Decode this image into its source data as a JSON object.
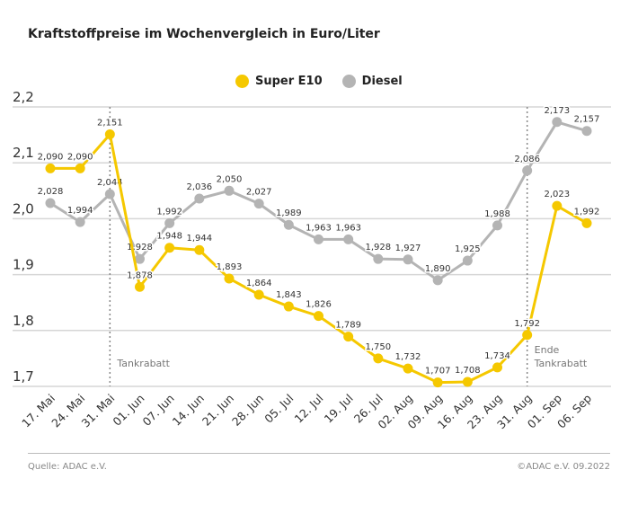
{
  "title": "Kraftstoffpreise im Wochenvergleich in Euro/Liter",
  "footer": {
    "source": "Quelle: ADAC e.V.",
    "copyright": "©ADAC e.V.  09.2022"
  },
  "chart_data": {
    "type": "line",
    "title": "Kraftstoffpreise im Wochenvergleich in Euro/Liter",
    "categories": [
      "17. Mai",
      "24. Mai",
      "31. Mai",
      "01. Jun",
      "07. Jun",
      "14. Jun",
      "21. Jun",
      "28. Jun",
      "05. Jul",
      "12. Jul",
      "19. Jul",
      "26. Jul",
      "02. Aug",
      "09. Aug",
      "16. Aug",
      "23. Aug",
      "31. Aug",
      "01. Sep",
      "06. Sep"
    ],
    "series": [
      {
        "name": "Super E10",
        "color": "#f5c800",
        "values": [
          2.09,
          2.09,
          2.151,
          1.878,
          1.948,
          1.944,
          1.893,
          1.864,
          1.843,
          1.826,
          1.789,
          1.75,
          1.732,
          1.707,
          1.708,
          1.734,
          1.792,
          2.023,
          1.992
        ]
      },
      {
        "name": "Diesel",
        "color": "#b4b4b4",
        "values": [
          2.028,
          1.994,
          2.044,
          1.928,
          1.992,
          2.036,
          2.05,
          2.027,
          1.989,
          1.963,
          1.963,
          1.928,
          1.927,
          1.89,
          1.925,
          1.988,
          2.086,
          2.173,
          2.157
        ]
      }
    ],
    "ylim": [
      1.7,
      2.2
    ],
    "yticks": [
      "2,2",
      "2,1",
      "2,0",
      "1,9",
      "1,8",
      "1,7"
    ],
    "grid": true,
    "legend": "top-center",
    "annotations": [
      {
        "category": "31. Mai",
        "lines": [
          "Tankrabatt"
        ]
      },
      {
        "category": "31. Aug",
        "lines": [
          "Ende",
          "Tankrabatt"
        ]
      }
    ]
  }
}
